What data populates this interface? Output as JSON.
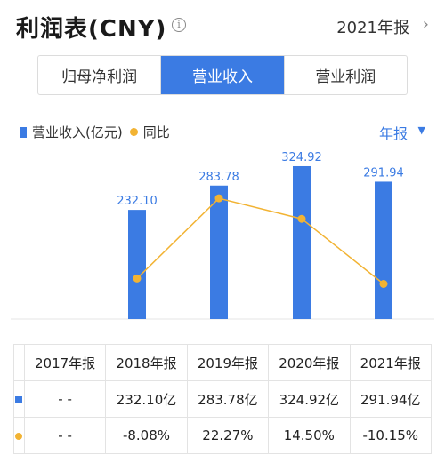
{
  "header": {
    "title": "利润表(CNY)",
    "period": "2021年报",
    "chevron": "›"
  },
  "tabs": [
    "归母净利润",
    "营业收入",
    "营业利润"
  ],
  "active_tab": 1,
  "legend": {
    "revenue": "营业收入(亿元)",
    "yoy": "同比"
  },
  "annual": {
    "label": "年报",
    "caret": "▼"
  },
  "colors": {
    "bar": "#3b7be3",
    "line": "#f2b333",
    "negative": "#2aa144",
    "positive": "#e04848"
  },
  "chart_data": {
    "type": "bar",
    "categories": [
      "2017年报",
      "2018年报",
      "2019年报",
      "2020年报",
      "2021年报"
    ],
    "series": [
      {
        "name": "营业收入(亿元)",
        "type": "bar",
        "values": [
          null,
          232.1,
          283.78,
          324.92,
          291.94
        ],
        "labels": [
          "",
          "232.10",
          "283.78",
          "324.92",
          "291.94"
        ]
      },
      {
        "name": "同比",
        "type": "line",
        "values": [
          null,
          -8.08,
          22.27,
          14.5,
          -10.15
        ]
      }
    ]
  },
  "table": {
    "headers": [
      "",
      "2017年报",
      "2018年报",
      "2019年报",
      "2020年报",
      "2021年报"
    ],
    "revenue_row": [
      "- -",
      "232.10亿",
      "283.78亿",
      "324.92亿",
      "291.94亿"
    ],
    "yoy_row": [
      "- -",
      "-8.08%",
      "22.27%",
      "14.50%",
      "-10.15%"
    ]
  }
}
